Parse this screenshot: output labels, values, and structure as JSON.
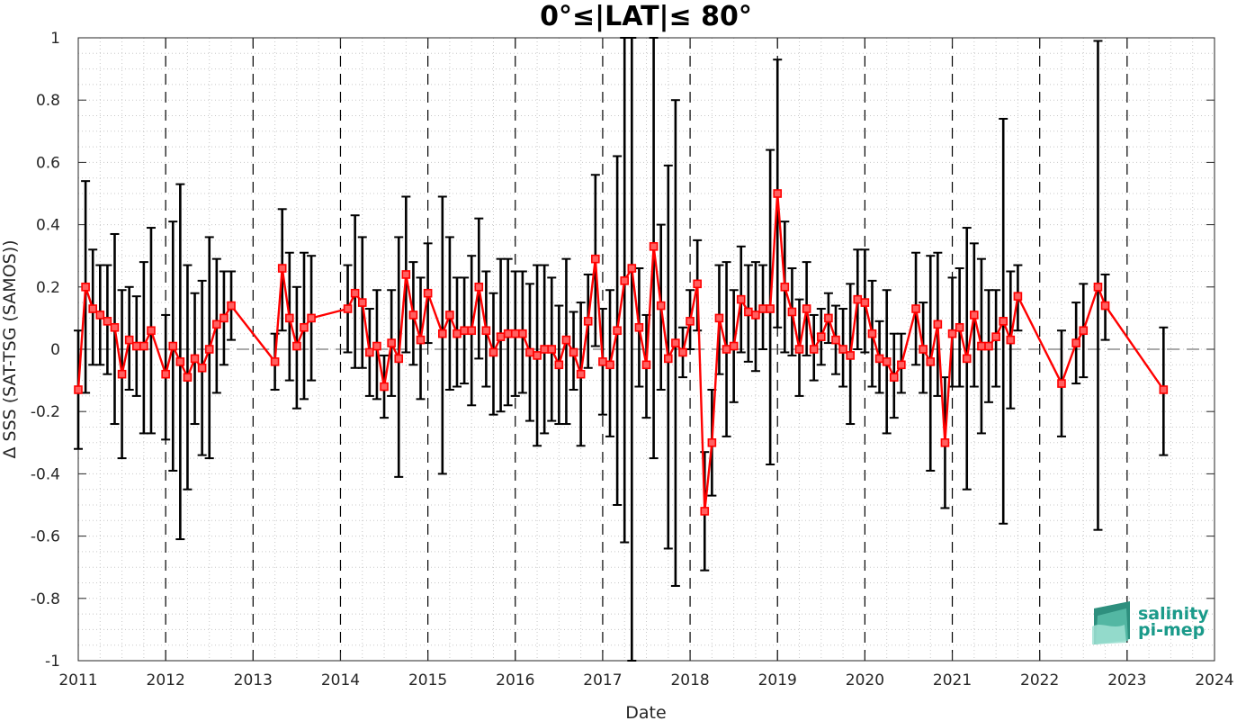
{
  "chart_data": {
    "type": "line",
    "title": "0°≤|LAT|≤ 80°",
    "xlabel": "Date",
    "ylabel": "Δ SSS (SAT-TSG (SAMOS))",
    "xlim": [
      2011,
      2024
    ],
    "ylim": [
      -1,
      1
    ],
    "x_ticks": [
      "2011",
      "2012",
      "2013",
      "2014",
      "2015",
      "2016",
      "2017",
      "2018",
      "2019",
      "2020",
      "2021",
      "2022",
      "2023",
      "2024"
    ],
    "y_ticks": [
      "-1",
      "-0.8",
      "-0.6",
      "-0.4",
      "-0.2",
      "0",
      "0.2",
      "0.4",
      "0.6",
      "0.8",
      "1"
    ],
    "grid": "dotted minor grid, dashed year lines",
    "series": [
      {
        "color": "#ff0000",
        "error_bar_color": "#000000",
        "points": [
          {
            "x": "2011-01",
            "y": -0.13,
            "lo": -0.32,
            "hi": 0.06
          },
          {
            "x": "2011-02",
            "y": 0.2,
            "lo": -0.14,
            "hi": 0.54
          },
          {
            "x": "2011-03",
            "y": 0.13,
            "lo": -0.05,
            "hi": 0.32
          },
          {
            "x": "2011-04",
            "y": 0.11,
            "lo": -0.05,
            "hi": 0.27
          },
          {
            "x": "2011-05",
            "y": 0.09,
            "lo": -0.08,
            "hi": 0.27
          },
          {
            "x": "2011-06",
            "y": 0.07,
            "lo": -0.24,
            "hi": 0.37
          },
          {
            "x": "2011-07",
            "y": -0.08,
            "lo": -0.35,
            "hi": 0.19
          },
          {
            "x": "2011-08",
            "y": 0.03,
            "lo": -0.13,
            "hi": 0.2
          },
          {
            "x": "2011-09",
            "y": 0.01,
            "lo": -0.15,
            "hi": 0.17
          },
          {
            "x": "2011-10",
            "y": 0.01,
            "lo": -0.27,
            "hi": 0.28
          },
          {
            "x": "2011-11",
            "y": 0.06,
            "lo": -0.27,
            "hi": 0.39
          },
          {
            "x": "2012-01",
            "y": -0.08,
            "lo": -0.29,
            "hi": 0.11
          },
          {
            "x": "2012-02",
            "y": 0.01,
            "lo": -0.39,
            "hi": 0.41
          },
          {
            "x": "2012-03",
            "y": -0.04,
            "lo": -0.61,
            "hi": 0.53
          },
          {
            "x": "2012-04",
            "y": -0.09,
            "lo": -0.45,
            "hi": 0.27
          },
          {
            "x": "2012-05",
            "y": -0.03,
            "lo": -0.24,
            "hi": 0.18
          },
          {
            "x": "2012-06",
            "y": -0.06,
            "lo": -0.34,
            "hi": 0.22
          },
          {
            "x": "2012-07",
            "y": 0.0,
            "lo": -0.35,
            "hi": 0.36
          },
          {
            "x": "2012-08",
            "y": 0.08,
            "lo": -0.14,
            "hi": 0.29
          },
          {
            "x": "2012-09",
            "y": 0.1,
            "lo": -0.05,
            "hi": 0.25
          },
          {
            "x": "2012-10",
            "y": 0.14,
            "lo": 0.03,
            "hi": 0.25
          },
          {
            "x": "2013-04",
            "y": -0.04,
            "lo": -0.13,
            "hi": 0.05
          },
          {
            "x": "2013-05",
            "y": 0.26,
            "lo": 0.06,
            "hi": 0.45
          },
          {
            "x": "2013-06",
            "y": 0.1,
            "lo": -0.1,
            "hi": 0.31
          },
          {
            "x": "2013-07",
            "y": 0.01,
            "lo": -0.19,
            "hi": 0.2
          },
          {
            "x": "2013-08",
            "y": 0.07,
            "lo": -0.16,
            "hi": 0.31
          },
          {
            "x": "2013-09",
            "y": 0.1,
            "lo": -0.1,
            "hi": 0.3
          },
          {
            "x": "2014-02",
            "y": 0.13,
            "lo": -0.01,
            "hi": 0.27
          },
          {
            "x": "2014-03",
            "y": 0.18,
            "lo": -0.06,
            "hi": 0.43
          },
          {
            "x": "2014-04",
            "y": 0.15,
            "lo": -0.06,
            "hi": 0.36
          },
          {
            "x": "2014-05",
            "y": -0.01,
            "lo": -0.15,
            "hi": 0.13
          },
          {
            "x": "2014-06",
            "y": 0.01,
            "lo": -0.16,
            "hi": 0.19
          },
          {
            "x": "2014-07",
            "y": -0.12,
            "lo": -0.22,
            "hi": -0.02
          },
          {
            "x": "2014-08",
            "y": 0.02,
            "lo": -0.15,
            "hi": 0.19
          },
          {
            "x": "2014-09",
            "y": -0.03,
            "lo": -0.41,
            "hi": 0.36
          },
          {
            "x": "2014-10",
            "y": 0.24,
            "lo": -0.01,
            "hi": 0.49
          },
          {
            "x": "2014-11",
            "y": 0.11,
            "lo": -0.05,
            "hi": 0.28
          },
          {
            "x": "2014-12",
            "y": 0.03,
            "lo": -0.16,
            "hi": 0.23
          },
          {
            "x": "2015-01",
            "y": 0.18,
            "lo": 0.02,
            "hi": 0.34
          },
          {
            "x": "2015-03",
            "y": 0.05,
            "lo": -0.4,
            "hi": 0.49
          },
          {
            "x": "2015-04",
            "y": 0.11,
            "lo": -0.13,
            "hi": 0.36
          },
          {
            "x": "2015-05",
            "y": 0.05,
            "lo": -0.12,
            "hi": 0.23
          },
          {
            "x": "2015-06",
            "y": 0.06,
            "lo": -0.11,
            "hi": 0.23
          },
          {
            "x": "2015-07",
            "y": 0.06,
            "lo": -0.18,
            "hi": 0.3
          },
          {
            "x": "2015-08",
            "y": 0.2,
            "lo": -0.03,
            "hi": 0.42
          },
          {
            "x": "2015-09",
            "y": 0.06,
            "lo": -0.12,
            "hi": 0.25
          },
          {
            "x": "2015-10",
            "y": -0.01,
            "lo": -0.21,
            "hi": 0.18
          },
          {
            "x": "2015-11",
            "y": 0.04,
            "lo": -0.2,
            "hi": 0.29
          },
          {
            "x": "2015-12",
            "y": 0.05,
            "lo": -0.18,
            "hi": 0.29
          },
          {
            "x": "2016-01",
            "y": 0.05,
            "lo": -0.15,
            "hi": 0.25
          },
          {
            "x": "2016-02",
            "y": 0.05,
            "lo": -0.14,
            "hi": 0.25
          },
          {
            "x": "2016-03",
            "y": -0.01,
            "lo": -0.23,
            "hi": 0.21
          },
          {
            "x": "2016-04",
            "y": -0.02,
            "lo": -0.31,
            "hi": 0.27
          },
          {
            "x": "2016-05",
            "y": 0.0,
            "lo": -0.27,
            "hi": 0.27
          },
          {
            "x": "2016-06",
            "y": 0.0,
            "lo": -0.23,
            "hi": 0.23
          },
          {
            "x": "2016-07",
            "y": -0.05,
            "lo": -0.24,
            "hi": 0.14
          },
          {
            "x": "2016-08",
            "y": 0.03,
            "lo": -0.24,
            "hi": 0.29
          },
          {
            "x": "2016-09",
            "y": -0.01,
            "lo": -0.13,
            "hi": 0.12
          },
          {
            "x": "2016-10",
            "y": -0.08,
            "lo": -0.31,
            "hi": 0.15
          },
          {
            "x": "2016-11",
            "y": 0.09,
            "lo": -0.06,
            "hi": 0.24
          },
          {
            "x": "2016-12",
            "y": 0.29,
            "lo": 0.01,
            "hi": 0.56
          },
          {
            "x": "2017-01",
            "y": -0.04,
            "lo": -0.21,
            "hi": 0.13
          },
          {
            "x": "2017-02",
            "y": -0.05,
            "lo": -0.28,
            "hi": 0.19
          },
          {
            "x": "2017-03",
            "y": 0.06,
            "lo": -0.5,
            "hi": 0.62
          },
          {
            "x": "2017-04",
            "y": 0.22,
            "lo": -0.62,
            "hi": 1.0
          },
          {
            "x": "2017-05",
            "y": 0.26,
            "lo": -1.0,
            "hi": 1.0
          },
          {
            "x": "2017-06",
            "y": 0.07,
            "lo": -0.12,
            "hi": 0.26
          },
          {
            "x": "2017-07",
            "y": -0.05,
            "lo": -0.22,
            "hi": 0.11
          },
          {
            "x": "2017-08",
            "y": 0.33,
            "lo": -0.35,
            "hi": 1.0
          },
          {
            "x": "2017-09",
            "y": 0.14,
            "lo": -0.13,
            "hi": 0.4
          },
          {
            "x": "2017-10",
            "y": -0.03,
            "lo": -0.64,
            "hi": 0.59
          },
          {
            "x": "2017-11",
            "y": 0.02,
            "lo": -0.76,
            "hi": 0.8
          },
          {
            "x": "2017-12",
            "y": -0.01,
            "lo": -0.09,
            "hi": 0.07
          },
          {
            "x": "2018-01",
            "y": 0.09,
            "lo": 0.0,
            "hi": 0.19
          },
          {
            "x": "2018-02",
            "y": 0.21,
            "lo": 0.06,
            "hi": 0.35
          },
          {
            "x": "2018-03",
            "y": -0.52,
            "lo": -0.71,
            "hi": -0.33
          },
          {
            "x": "2018-04",
            "y": -0.3,
            "lo": -0.47,
            "hi": -0.13
          },
          {
            "x": "2018-05",
            "y": 0.1,
            "lo": -0.08,
            "hi": 0.27
          },
          {
            "x": "2018-06",
            "y": 0.0,
            "lo": -0.28,
            "hi": 0.28
          },
          {
            "x": "2018-07",
            "y": 0.01,
            "lo": -0.17,
            "hi": 0.19
          },
          {
            "x": "2018-08",
            "y": 0.16,
            "lo": -0.01,
            "hi": 0.33
          },
          {
            "x": "2018-09",
            "y": 0.12,
            "lo": -0.04,
            "hi": 0.27
          },
          {
            "x": "2018-10",
            "y": 0.11,
            "lo": -0.07,
            "hi": 0.28
          },
          {
            "x": "2018-11",
            "y": 0.13,
            "lo": 0.0,
            "hi": 0.27
          },
          {
            "x": "2018-12",
            "y": 0.13,
            "lo": -0.37,
            "hi": 0.64
          },
          {
            "x": "2019-01",
            "y": 0.5,
            "lo": 0.07,
            "hi": 0.93
          },
          {
            "x": "2019-02",
            "y": 0.2,
            "lo": -0.01,
            "hi": 0.41
          },
          {
            "x": "2019-03",
            "y": 0.12,
            "lo": -0.02,
            "hi": 0.26
          },
          {
            "x": "2019-04",
            "y": 0.0,
            "lo": -0.15,
            "hi": 0.16
          },
          {
            "x": "2019-05",
            "y": 0.13,
            "lo": -0.02,
            "hi": 0.28
          },
          {
            "x": "2019-06",
            "y": 0.0,
            "lo": -0.1,
            "hi": 0.11
          },
          {
            "x": "2019-07",
            "y": 0.04,
            "lo": -0.05,
            "hi": 0.13
          },
          {
            "x": "2019-08",
            "y": 0.1,
            "lo": 0.02,
            "hi": 0.18
          },
          {
            "x": "2019-09",
            "y": 0.03,
            "lo": -0.08,
            "hi": 0.14
          },
          {
            "x": "2019-10",
            "y": 0.0,
            "lo": -0.12,
            "hi": 0.13
          },
          {
            "x": "2019-11",
            "y": -0.02,
            "lo": -0.24,
            "hi": 0.21
          },
          {
            "x": "2019-12",
            "y": 0.16,
            "lo": 0.0,
            "hi": 0.32
          },
          {
            "x": "2020-01",
            "y": 0.15,
            "lo": -0.01,
            "hi": 0.32
          },
          {
            "x": "2020-02",
            "y": 0.05,
            "lo": -0.12,
            "hi": 0.22
          },
          {
            "x": "2020-03",
            "y": -0.03,
            "lo": -0.14,
            "hi": 0.09
          },
          {
            "x": "2020-04",
            "y": -0.04,
            "lo": -0.27,
            "hi": 0.19
          },
          {
            "x": "2020-05",
            "y": -0.09,
            "lo": -0.22,
            "hi": 0.05
          },
          {
            "x": "2020-06",
            "y": -0.05,
            "lo": -0.14,
            "hi": 0.05
          },
          {
            "x": "2020-08",
            "y": 0.13,
            "lo": -0.05,
            "hi": 0.31
          },
          {
            "x": "2020-09",
            "y": 0.0,
            "lo": -0.14,
            "hi": 0.15
          },
          {
            "x": "2020-10",
            "y": -0.04,
            "lo": -0.39,
            "hi": 0.3
          },
          {
            "x": "2020-11",
            "y": 0.08,
            "lo": -0.15,
            "hi": 0.31
          },
          {
            "x": "2020-12",
            "y": -0.3,
            "lo": -0.51,
            "hi": -0.09
          },
          {
            "x": "2021-01",
            "y": 0.05,
            "lo": -0.12,
            "hi": 0.23
          },
          {
            "x": "2021-02",
            "y": 0.07,
            "lo": -0.12,
            "hi": 0.26
          },
          {
            "x": "2021-03",
            "y": -0.03,
            "lo": -0.45,
            "hi": 0.39
          },
          {
            "x": "2021-04",
            "y": 0.11,
            "lo": -0.12,
            "hi": 0.34
          },
          {
            "x": "2021-05",
            "y": 0.01,
            "lo": -0.27,
            "hi": 0.29
          },
          {
            "x": "2021-06",
            "y": 0.01,
            "lo": -0.17,
            "hi": 0.19
          },
          {
            "x": "2021-07",
            "y": 0.04,
            "lo": -0.12,
            "hi": 0.19
          },
          {
            "x": "2021-08",
            "y": 0.09,
            "lo": -0.56,
            "hi": 0.74
          },
          {
            "x": "2021-09",
            "y": 0.03,
            "lo": -0.19,
            "hi": 0.25
          },
          {
            "x": "2021-10",
            "y": 0.17,
            "lo": 0.06,
            "hi": 0.27
          },
          {
            "x": "2022-04",
            "y": -0.11,
            "lo": -0.28,
            "hi": 0.06
          },
          {
            "x": "2022-06",
            "y": 0.02,
            "lo": -0.11,
            "hi": 0.15
          },
          {
            "x": "2022-07",
            "y": 0.06,
            "lo": -0.09,
            "hi": 0.21
          },
          {
            "x": "2022-09",
            "y": 0.2,
            "lo": -0.58,
            "hi": 0.99
          },
          {
            "x": "2022-10",
            "y": 0.14,
            "lo": 0.03,
            "hi": 0.24
          },
          {
            "x": "2023-06",
            "y": -0.13,
            "lo": -0.34,
            "hi": 0.07
          }
        ]
      }
    ],
    "logo": {
      "line1": "salinity",
      "line2": "pi-mep",
      "color": "#1a9a8a"
    }
  }
}
